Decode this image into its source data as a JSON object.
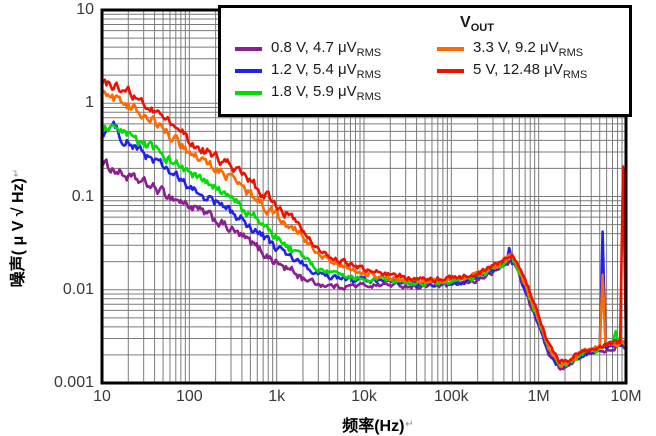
{
  "figure": {
    "y_axis": {
      "label": "噪声( μ V √ Hz)",
      "return_mark": "↵",
      "ticks": [
        {
          "v": 10,
          "label": "10"
        },
        {
          "v": 1,
          "label": "1"
        },
        {
          "v": 0.1,
          "label": "0.1"
        },
        {
          "v": 0.01,
          "label": "0.01"
        },
        {
          "v": 0.001,
          "label": "0.001"
        }
      ]
    },
    "x_axis": {
      "label": "频率(Hz)",
      "return_mark": "↵",
      "ticks": [
        {
          "v": 10,
          "label": "10"
        },
        {
          "v": 100,
          "label": "100"
        },
        {
          "v": 1000,
          "label": "1k"
        },
        {
          "v": 10000,
          "label": "10k"
        },
        {
          "v": 100000,
          "label": "100k"
        },
        {
          "v": 1000000,
          "label": "1M"
        },
        {
          "v": 10000000,
          "label": "10M"
        }
      ]
    },
    "legend": {
      "title_main": "V",
      "title_sub": "OUT",
      "items": [
        {
          "key": "0.8 V",
          "label": "0.8 V, 4.7 μV",
          "sub": "RMS",
          "color": "#8B1F8F"
        },
        {
          "key": "1.2 V",
          "label": "1.2 V, 5.4 μV",
          "sub": "RMS",
          "color": "#2222EE"
        },
        {
          "key": "1.8 V",
          "label": "1.8 V, 5.9 μV",
          "sub": "RMS",
          "color": "#00DD00"
        },
        {
          "key": "3.3 V",
          "label": "3.3 V, 9.2 μV",
          "sub": "RMS",
          "color": "#FF6A00"
        },
        {
          "key": "5 V",
          "label": "5 V, 12.48 μV",
          "sub": "RMS",
          "color": "#EE1100"
        }
      ]
    }
  },
  "chart_data": {
    "type": "line",
    "x_scale": "log",
    "y_scale": "log",
    "xlim": [
      10,
      10000000
    ],
    "ylim": [
      0.001,
      10
    ],
    "xlabel": "频率(Hz)",
    "ylabel": "噪声(μV√Hz)",
    "grid": true,
    "legend_position": "top-right",
    "grid_color": "#7b7b7b",
    "series": [
      {
        "key": "0.8 V",
        "name": "0.8 V, 4.7 μVRMS",
        "color": "#8B1F8F",
        "points": [
          [
            10,
            0.23
          ],
          [
            20,
            0.16
          ],
          [
            30,
            0.14
          ],
          [
            50,
            0.11
          ],
          [
            100,
            0.08
          ],
          [
            200,
            0.056
          ],
          [
            300,
            0.044
          ],
          [
            500,
            0.032
          ],
          [
            1000,
            0.0195
          ],
          [
            2000,
            0.0135
          ],
          [
            3000,
            0.0115
          ],
          [
            5000,
            0.0108
          ],
          [
            10000,
            0.0112
          ],
          [
            20000,
            0.0113
          ],
          [
            50000,
            0.0108
          ],
          [
            100000,
            0.0113
          ],
          [
            150000,
            0.0118
          ],
          [
            200000,
            0.0128
          ],
          [
            300000,
            0.0152
          ],
          [
            400000,
            0.0182
          ],
          [
            470000,
            0.0202
          ],
          [
            550000,
            0.0178
          ],
          [
            650000,
            0.0118
          ],
          [
            800000,
            0.0068
          ],
          [
            1000000,
            0.0041
          ],
          [
            1300000,
            0.0021
          ],
          [
            1700000,
            0.00148
          ],
          [
            2200000,
            0.00153
          ],
          [
            3000000,
            0.00192
          ],
          [
            5000000,
            0.0022
          ],
          [
            7000000,
            0.0024
          ],
          [
            10000000,
            0.0025
          ]
        ]
      },
      {
        "key": "1.2 V",
        "name": "1.2 V, 5.4 μVRMS",
        "color": "#2222EE",
        "points": [
          [
            10,
            0.48
          ],
          [
            14,
            0.56
          ],
          [
            18,
            0.4
          ],
          [
            30,
            0.29
          ],
          [
            50,
            0.21
          ],
          [
            100,
            0.123
          ],
          [
            200,
            0.086
          ],
          [
            300,
            0.068
          ],
          [
            500,
            0.048
          ],
          [
            1000,
            0.028
          ],
          [
            2000,
            0.018
          ],
          [
            3000,
            0.0145
          ],
          [
            5000,
            0.0132
          ],
          [
            10000,
            0.0125
          ],
          [
            20000,
            0.0119
          ],
          [
            50000,
            0.0113
          ],
          [
            100000,
            0.0118
          ],
          [
            150000,
            0.0124
          ],
          [
            200000,
            0.0135
          ],
          [
            300000,
            0.0158
          ],
          [
            400000,
            0.019
          ],
          [
            470000,
            0.0215
          ],
          [
            550000,
            0.0188
          ],
          [
            650000,
            0.0125
          ],
          [
            800000,
            0.0073
          ],
          [
            1000000,
            0.0044
          ],
          [
            1300000,
            0.0022
          ],
          [
            1700000,
            0.00152
          ],
          [
            2200000,
            0.00158
          ],
          [
            3000000,
            0.00198
          ],
          [
            5000000,
            0.0023
          ],
          [
            7000000,
            0.0025
          ],
          [
            10000000,
            0.0026
          ]
        ]
      },
      {
        "key": "1.8 V",
        "name": "1.8 V, 5.9 μVRMS",
        "color": "#00DD00",
        "points": [
          [
            10,
            0.55
          ],
          [
            20,
            0.44
          ],
          [
            30,
            0.37
          ],
          [
            50,
            0.28
          ],
          [
            100,
            0.178
          ],
          [
            200,
            0.12
          ],
          [
            300,
            0.095
          ],
          [
            500,
            0.065
          ],
          [
            1000,
            0.036
          ],
          [
            2000,
            0.022
          ],
          [
            3000,
            0.0165
          ],
          [
            5000,
            0.0145
          ],
          [
            10000,
            0.0135
          ],
          [
            20000,
            0.0124
          ],
          [
            50000,
            0.0117
          ],
          [
            100000,
            0.0122
          ],
          [
            150000,
            0.0128
          ],
          [
            200000,
            0.014
          ],
          [
            300000,
            0.0163
          ],
          [
            400000,
            0.0196
          ],
          [
            470000,
            0.0218
          ],
          [
            550000,
            0.0192
          ],
          [
            650000,
            0.013
          ],
          [
            800000,
            0.0077
          ],
          [
            1000000,
            0.0046
          ],
          [
            1300000,
            0.0023
          ],
          [
            1700000,
            0.00156
          ],
          [
            2200000,
            0.00162
          ],
          [
            3000000,
            0.00205
          ],
          [
            5000000,
            0.00235
          ],
          [
            7000000,
            0.00255
          ],
          [
            10000000,
            0.0027
          ]
        ]
      },
      {
        "key": "3.3 V",
        "name": "3.3 V, 9.2 μVRMS",
        "color": "#FF6A00",
        "points": [
          [
            10,
            1.3
          ],
          [
            20,
            0.95
          ],
          [
            30,
            0.75
          ],
          [
            50,
            0.53
          ],
          [
            100,
            0.3
          ],
          [
            200,
            0.2
          ],
          [
            300,
            0.155
          ],
          [
            500,
            0.105
          ],
          [
            1000,
            0.063
          ],
          [
            2000,
            0.037
          ],
          [
            3000,
            0.0235
          ],
          [
            5000,
            0.019
          ],
          [
            10000,
            0.0155
          ],
          [
            20000,
            0.0132
          ],
          [
            50000,
            0.0122
          ],
          [
            100000,
            0.0127
          ],
          [
            150000,
            0.0133
          ],
          [
            200000,
            0.0146
          ],
          [
            300000,
            0.0168
          ],
          [
            400000,
            0.0202
          ],
          [
            470000,
            0.0225
          ],
          [
            550000,
            0.0202
          ],
          [
            650000,
            0.0138
          ],
          [
            800000,
            0.0083
          ],
          [
            1000000,
            0.0049
          ],
          [
            1300000,
            0.0024
          ],
          [
            1700000,
            0.0016
          ],
          [
            2200000,
            0.00166
          ],
          [
            3000000,
            0.0021
          ],
          [
            5000000,
            0.0024
          ],
          [
            7000000,
            0.0026
          ],
          [
            10000000,
            0.0027
          ]
        ]
      },
      {
        "key": "5 V",
        "name": "5 V, 12.48 μVRMS",
        "color": "#EE1100",
        "points": [
          [
            10,
            1.65
          ],
          [
            15,
            1.5
          ],
          [
            20,
            1.35
          ],
          [
            30,
            1.0
          ],
          [
            50,
            0.72
          ],
          [
            70,
            0.55
          ],
          [
            100,
            0.39
          ],
          [
            200,
            0.27
          ],
          [
            300,
            0.21
          ],
          [
            500,
            0.145
          ],
          [
            1000,
            0.081
          ],
          [
            2000,
            0.045
          ],
          [
            3000,
            0.0265
          ],
          [
            5000,
            0.021
          ],
          [
            10000,
            0.017
          ],
          [
            20000,
            0.0145
          ],
          [
            50000,
            0.0128
          ],
          [
            100000,
            0.0132
          ],
          [
            150000,
            0.014
          ],
          [
            200000,
            0.0152
          ],
          [
            300000,
            0.0178
          ],
          [
            400000,
            0.021
          ],
          [
            470000,
            0.0242
          ],
          [
            520000,
            0.0232
          ],
          [
            600000,
            0.0188
          ],
          [
            650000,
            0.0152
          ],
          [
            800000,
            0.0092
          ],
          [
            1000000,
            0.0056
          ],
          [
            1300000,
            0.0026
          ],
          [
            1700000,
            0.0017
          ],
          [
            2200000,
            0.00172
          ],
          [
            3000000,
            0.00218
          ],
          [
            5000000,
            0.00245
          ],
          [
            7000000,
            0.00265
          ],
          [
            10000000,
            0.0028
          ]
        ]
      }
    ],
    "spikes": [
      {
        "series": "1.2 V",
        "freq": 460000,
        "peak": 0.028
      },
      {
        "series": "3.3 V",
        "freq": 5300000,
        "peak": 0.0145
      },
      {
        "series": "1.2 V",
        "freq": 5300000,
        "peak": 0.042
      },
      {
        "series": "1.8 V",
        "freq": 7600000,
        "peak": 0.0036
      },
      {
        "series": "5 V",
        "freq": 9300000,
        "peak": 0.21
      }
    ]
  }
}
